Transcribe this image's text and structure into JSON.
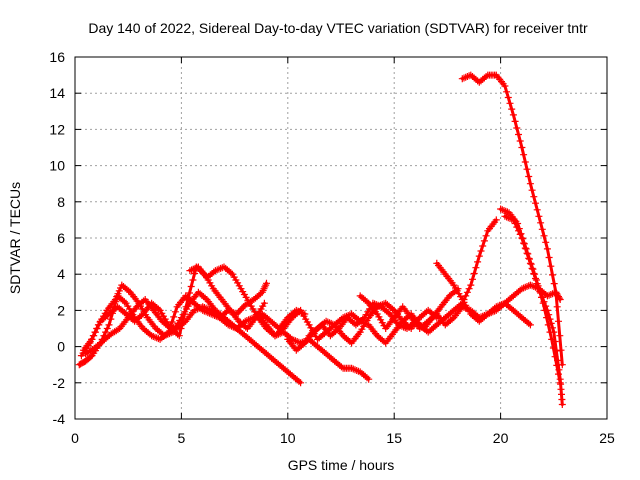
{
  "chart_data": {
    "type": "scatter",
    "title": "Day 140 of 2022, Sidereal Day-to-day VTEC variation (SDTVAR) for receiver tntr",
    "xlabel": "GPS time / hours",
    "ylabel": "SDTVAR / TECUs",
    "xlim": [
      0,
      25
    ],
    "ylim": [
      -4,
      16
    ],
    "xticks": [
      0,
      5,
      10,
      15,
      20,
      25
    ],
    "yticks": [
      -4,
      -2,
      0,
      2,
      4,
      6,
      8,
      10,
      12,
      14,
      16
    ],
    "grid": true,
    "marker": "plus",
    "color": "#ff0000",
    "series": [
      {
        "x": [
          0.2,
          0.5,
          0.8,
          1.2,
          1.6,
          2.0,
          2.4,
          2.8,
          3.2,
          3.6,
          4.0,
          4.4,
          4.8,
          5.2,
          5.6,
          6.0,
          6.4,
          6.8,
          7.2,
          7.6,
          8.0,
          8.4,
          8.8,
          9.0
        ],
        "y": [
          -1.0,
          -0.8,
          -0.5,
          0.2,
          1.2,
          2.8,
          2.4,
          1.6,
          1.0,
          0.6,
          0.4,
          0.8,
          2.2,
          2.8,
          2.4,
          2.0,
          1.8,
          1.6,
          2.0,
          1.8,
          2.3,
          2.6,
          3.0,
          3.5
        ]
      },
      {
        "x": [
          0.3,
          0.7,
          1.1,
          1.5,
          1.9,
          2.2,
          2.6,
          3.0,
          3.4,
          3.8,
          4.2,
          4.6,
          5.0,
          5.4,
          5.8,
          6.2,
          6.6,
          7.0,
          7.4,
          7.8,
          8.2,
          8.6,
          9.0,
          9.4,
          9.8,
          10.2,
          10.6
        ],
        "y": [
          -0.5,
          0.2,
          1.2,
          2.0,
          2.6,
          3.4,
          3.0,
          2.4,
          1.6,
          1.0,
          0.6,
          0.8,
          1.6,
          2.4,
          3.0,
          2.6,
          2.0,
          1.6,
          1.2,
          0.8,
          0.4,
          0.0,
          -0.4,
          -0.8,
          -1.2,
          -1.6,
          -2.0
        ]
      },
      {
        "x": [
          0.4,
          0.8,
          1.2,
          1.6,
          2.0,
          2.4,
          2.8,
          3.2,
          3.6,
          4.0,
          4.4,
          4.8,
          5.2,
          5.6,
          6.0,
          6.4,
          6.8,
          7.2,
          7.6,
          8.0,
          8.4,
          8.8,
          9.2,
          9.6,
          10.0,
          10.4,
          10.8
        ],
        "y": [
          -0.2,
          0.4,
          1.4,
          1.8,
          2.2,
          1.8,
          1.4,
          1.8,
          2.4,
          2.0,
          1.2,
          1.0,
          1.4,
          2.0,
          2.2,
          2.0,
          1.6,
          1.2,
          1.0,
          1.4,
          1.6,
          1.8,
          1.4,
          1.0,
          1.6,
          2.0,
          1.8
        ]
      },
      {
        "x": [
          0.5,
          0.9,
          1.3,
          1.7,
          2.1,
          2.5,
          2.9,
          3.3,
          3.7,
          4.1,
          4.5,
          4.9,
          5.3,
          5.7,
          6.1,
          6.5,
          6.9,
          7.3,
          7.7,
          8.1,
          8.5,
          8.9
        ],
        "y": [
          -0.4,
          -0.1,
          0.3,
          0.7,
          1.0,
          1.6,
          2.2,
          2.6,
          2.0,
          1.4,
          1.0,
          0.6,
          2.6,
          4.4,
          4.0,
          3.2,
          2.6,
          2.0,
          1.4,
          1.0,
          1.6,
          2.4
        ]
      },
      {
        "x": [
          5.4,
          5.8,
          6.2,
          6.6,
          7.0,
          7.4,
          7.8,
          8.2,
          8.6,
          9.0,
          9.4,
          9.8,
          10.2,
          10.6,
          11.0,
          11.4,
          11.8,
          12.2,
          12.6,
          13.0,
          13.4,
          13.8
        ],
        "y": [
          4.2,
          4.4,
          3.8,
          4.2,
          4.4,
          4.0,
          3.2,
          2.4,
          1.6,
          1.0,
          0.6,
          0.8,
          0.4,
          0.2,
          0.4,
          0.0,
          -0.4,
          -0.8,
          -1.2,
          -1.2,
          -1.4,
          -1.8
        ]
      },
      {
        "x": [
          8.6,
          9.0,
          9.4,
          9.8,
          10.2,
          10.6,
          11.0,
          11.4,
          11.8,
          12.2,
          12.6,
          13.0,
          13.4,
          13.8,
          14.2,
          14.6,
          15.0,
          15.4,
          15.8,
          16.2,
          16.6,
          17.0
        ],
        "y": [
          1.8,
          1.2,
          0.6,
          1.0,
          1.6,
          2.0,
          1.2,
          0.4,
          0.8,
          1.2,
          0.6,
          0.2,
          0.8,
          1.6,
          2.2,
          2.4,
          2.0,
          1.4,
          1.0,
          1.6,
          2.0,
          1.6
        ]
      },
      {
        "x": [
          10.0,
          10.4,
          10.8,
          11.2,
          11.6,
          12.0,
          12.4,
          12.8,
          13.2,
          13.6,
          14.0,
          14.4,
          14.8,
          15.2,
          15.6,
          16.0,
          16.4,
          16.8,
          17.2,
          17.6,
          18.0
        ],
        "y": [
          0.4,
          -0.2,
          0.2,
          0.8,
          1.2,
          0.6,
          1.0,
          1.6,
          1.2,
          1.6,
          2.4,
          2.2,
          1.8,
          1.2,
          1.0,
          1.4,
          1.0,
          1.6,
          2.2,
          2.8,
          3.2
        ]
      },
      {
        "x": [
          11.0,
          11.4,
          11.8,
          12.2,
          12.6,
          13.0,
          13.4,
          13.8,
          14.2,
          14.6,
          15.0,
          15.4,
          15.8,
          16.2,
          16.6,
          17.0,
          17.4,
          17.8,
          18.2,
          18.6,
          19.0,
          19.4,
          19.8
        ],
        "y": [
          0.6,
          1.0,
          1.4,
          1.2,
          1.6,
          1.8,
          1.4,
          1.2,
          0.6,
          0.2,
          0.8,
          1.4,
          1.8,
          1.2,
          0.8,
          1.2,
          1.6,
          2.0,
          2.4,
          3.4,
          5.0,
          6.4,
          7.0
        ]
      },
      {
        "x": [
          13.4,
          13.8,
          14.2,
          14.6,
          15.0,
          15.4,
          15.8,
          16.2,
          16.6,
          17.0,
          17.4,
          17.8,
          18.2,
          18.6,
          19.0,
          19.4,
          19.8,
          20.2,
          20.6,
          21.0,
          21.4
        ],
        "y": [
          2.8,
          2.4,
          1.8,
          1.0,
          1.6,
          2.2,
          1.6,
          1.0,
          1.4,
          1.8,
          1.2,
          1.6,
          2.2,
          2.0,
          1.6,
          1.8,
          2.2,
          2.4,
          2.0,
          1.6,
          1.2
        ]
      },
      {
        "x": [
          17.0,
          17.4,
          17.8,
          18.2,
          18.6,
          19.0,
          19.4,
          19.8,
          20.2,
          20.6,
          21.0,
          21.4,
          21.8,
          22.2,
          22.6,
          22.8
        ],
        "y": [
          4.6,
          4.0,
          3.4,
          2.6,
          1.8,
          1.4,
          1.8,
          2.0,
          2.4,
          2.8,
          3.2,
          3.4,
          3.2,
          2.8,
          3.0,
          2.6
        ]
      },
      {
        "x": [
          18.2,
          18.6,
          19.0,
          19.4,
          19.8,
          20.2,
          20.6,
          21.0,
          21.4,
          21.8,
          22.2,
          22.6,
          22.9
        ],
        "y": [
          14.8,
          15.0,
          14.6,
          15.0,
          15.0,
          14.4,
          12.8,
          11.0,
          9.0,
          7.2,
          5.4,
          3.0,
          -1.0
        ]
      },
      {
        "x": [
          20.0,
          20.4,
          20.8,
          21.2,
          21.6,
          22.0,
          22.4,
          22.8
        ],
        "y": [
          7.6,
          7.4,
          6.8,
          5.4,
          4.0,
          2.4,
          0.4,
          -2.0
        ]
      },
      {
        "x": [
          20.2,
          20.6,
          21.0,
          21.4,
          21.8,
          22.2,
          22.5,
          22.8,
          22.9
        ],
        "y": [
          7.2,
          7.0,
          6.0,
          4.6,
          3.2,
          2.0,
          0.8,
          -1.8,
          -3.2
        ]
      }
    ]
  }
}
